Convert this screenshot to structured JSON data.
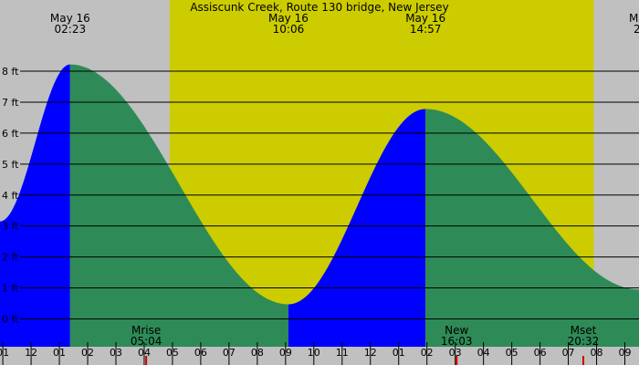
{
  "chart_data": {
    "type": "area",
    "title": "Assiscunk Creek, Route 130 bridge, New Jersey",
    "y_unit": "ft",
    "ylim": [
      -0.9,
      10.3
    ],
    "yticks": [
      0,
      1,
      2,
      3,
      4,
      5,
      6,
      7,
      8
    ],
    "xlim": [
      -0.1,
      22.5
    ],
    "hour_labels": [
      "01",
      "12",
      "01",
      "02",
      "03",
      "04",
      "05",
      "06",
      "07",
      "08",
      "09",
      "10",
      "11",
      "12",
      "01",
      "02",
      "03",
      "04",
      "05",
      "06",
      "07",
      "08",
      "09"
    ],
    "tide_curve": [
      {
        "t": -0.1,
        "h": 3.15
      },
      {
        "t": 2.38,
        "h": 8.22,
        "label_date": "May 16",
        "label_time": "02:23"
      },
      {
        "t": 10.1,
        "h": 0.47,
        "label_date": "May 16",
        "label_time": "10:06"
      },
      {
        "t": 14.95,
        "h": 6.78,
        "label_date": "May 16",
        "label_time": "14:57"
      },
      {
        "t": 22.5,
        "h": 0.95
      }
    ],
    "edge_label_right": {
      "date": "M",
      "time": "2"
    },
    "rising_segments": [
      [
        -0.1,
        2.38
      ],
      [
        10.1,
        14.95
      ]
    ],
    "daylight": [
      5.9,
      20.9
    ],
    "events": [
      {
        "name": "Mrise",
        "time": "05:04",
        "t": 5.07
      },
      {
        "name": "New",
        "time": "16:03",
        "t": 16.05
      },
      {
        "name": "Mset",
        "time": "20:32",
        "t": 20.53
      }
    ],
    "colors": {
      "background": "#c0c0c0",
      "daylight": "#cccc00",
      "rising": "#0000ff",
      "falling": "#2e8b57",
      "grid": "#000000",
      "moon_tick": "#cc0000"
    }
  }
}
